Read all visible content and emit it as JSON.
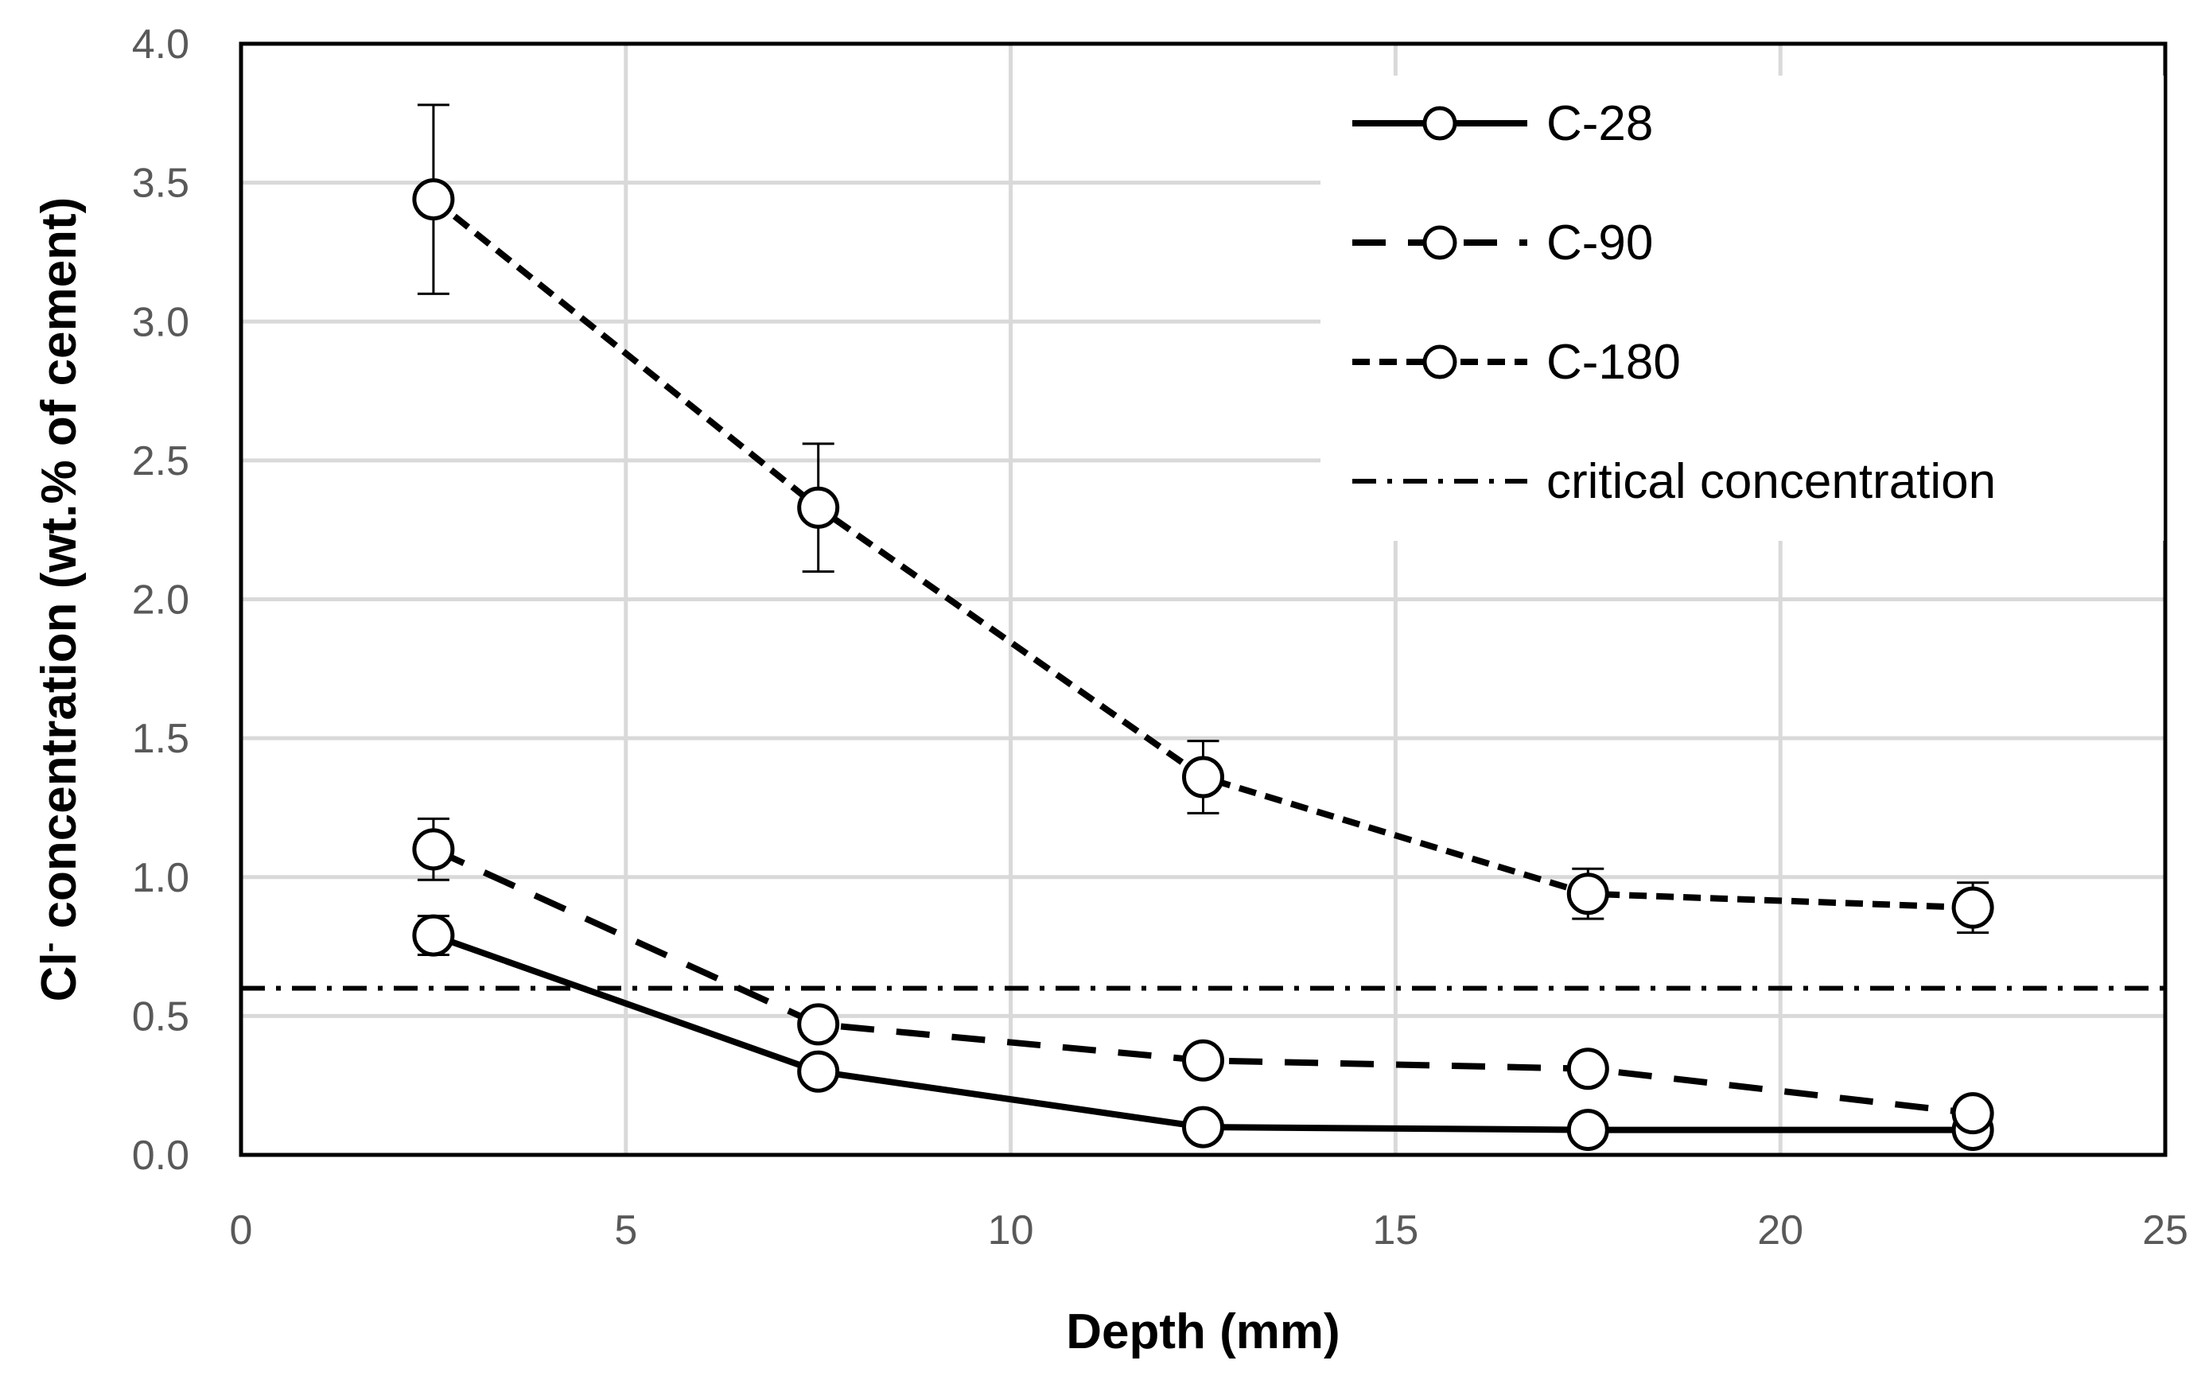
{
  "chart_data": {
    "type": "line",
    "title": "",
    "xlabel": "Depth (mm)",
    "ylabel_main": "Cl",
    "ylabel_sup": "-",
    "ylabel_rest": " concentration (wt.% of cement)",
    "xlim": [
      0,
      25
    ],
    "ylim": [
      0,
      4.0
    ],
    "x_ticks": [
      0,
      5,
      10,
      15,
      20,
      25
    ],
    "x_tick_labels": [
      "0",
      "5",
      "10",
      "15",
      "20",
      "25"
    ],
    "y_ticks": [
      0,
      0.5,
      1.0,
      1.5,
      2.0,
      2.5,
      3.0,
      3.5,
      4.0
    ],
    "y_tick_labels": [
      "0.0",
      "0.5",
      "1.0",
      "1.5",
      "2.0",
      "2.5",
      "3.0",
      "3.5",
      "4.0"
    ],
    "grid": true,
    "legend_position": "top-right",
    "x": [
      2.5,
      7.5,
      12.5,
      17.5,
      22.5
    ],
    "series": [
      {
        "name": "C-28",
        "style": "solid",
        "values": [
          0.79,
          0.3,
          0.1,
          0.09,
          0.09
        ],
        "errors": [
          0.07,
          0,
          0,
          0,
          0
        ]
      },
      {
        "name": "C-90",
        "style": "dashed",
        "values": [
          1.1,
          0.47,
          0.34,
          0.31,
          0.15
        ],
        "errors": [
          0.11,
          0,
          0,
          0,
          0
        ]
      },
      {
        "name": "C-180",
        "style": "short-dashed",
        "values": [
          3.44,
          2.33,
          1.36,
          0.94,
          0.89
        ],
        "errors": [
          0.34,
          0.23,
          0.13,
          0.09,
          0.09
        ]
      }
    ],
    "reference_line": {
      "name": "critical concentration",
      "style": "dash-dot",
      "y": 0.6
    },
    "legend": [
      "C-28",
      "C-90",
      "C-180",
      "critical concentration"
    ],
    "colors": {
      "line": "#000000",
      "grid": "#d9d9d9",
      "tick": "#595959",
      "marker_fill": "#ffffff"
    }
  }
}
